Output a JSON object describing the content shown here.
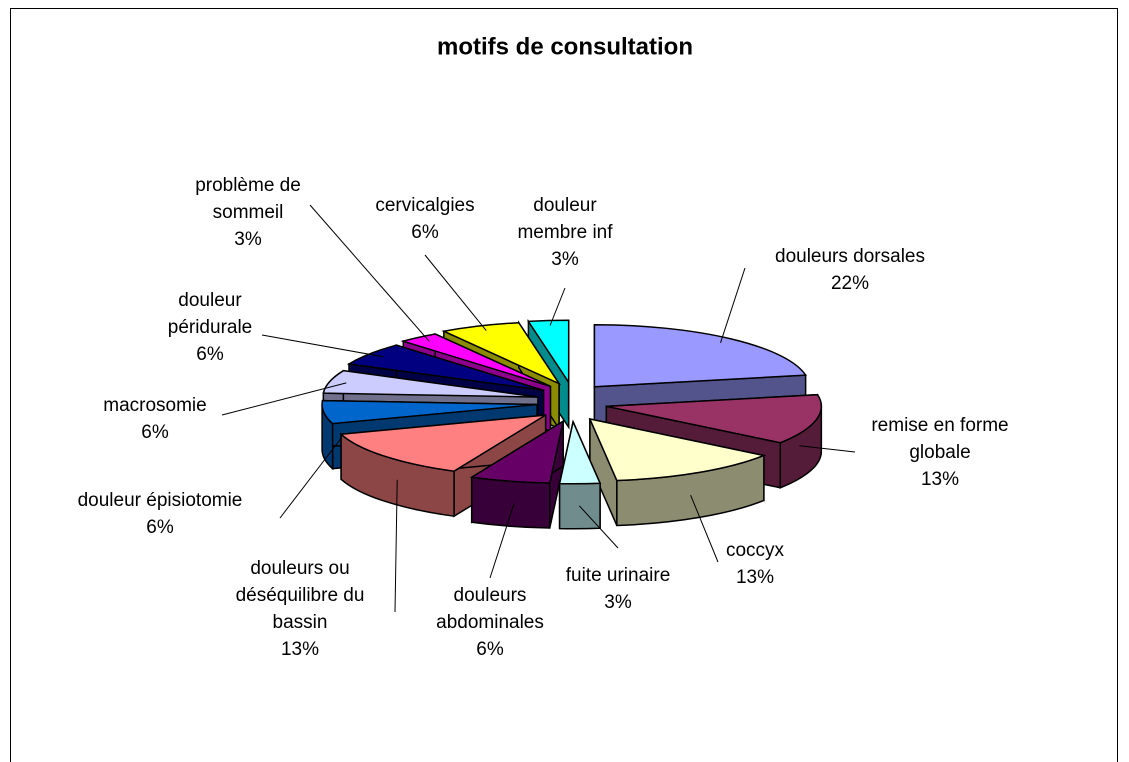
{
  "chart_data": {
    "type": "pie3d",
    "title": "motifs de consultation",
    "categories": [
      "douleurs dorsales",
      "remise en forme globale",
      "coccyx",
      "fuite urinaire",
      "douleurs abdominales",
      "douleurs ou déséquilibre du bassin",
      "douleur épisiotomie",
      "macrosomie",
      "douleur péridurale",
      "problème de sommeil",
      "cervicalgies",
      "douleur membre inf"
    ],
    "values": [
      22,
      13,
      13,
      3,
      6,
      13,
      6,
      6,
      6,
      3,
      6,
      3
    ],
    "value_labels": [
      "22%",
      "13%",
      "13%",
      "3%",
      "6%",
      "13%",
      "6%",
      "6%",
      "6%",
      "3%",
      "6%",
      "3%"
    ],
    "colors": [
      "#9999ff",
      "#993366",
      "#ffffcc",
      "#ccffff",
      "#660066",
      "#ff8080",
      "#0066cc",
      "#ccccff",
      "#000080",
      "#ff00ff",
      "#ffff00",
      "#00ffff"
    ]
  }
}
